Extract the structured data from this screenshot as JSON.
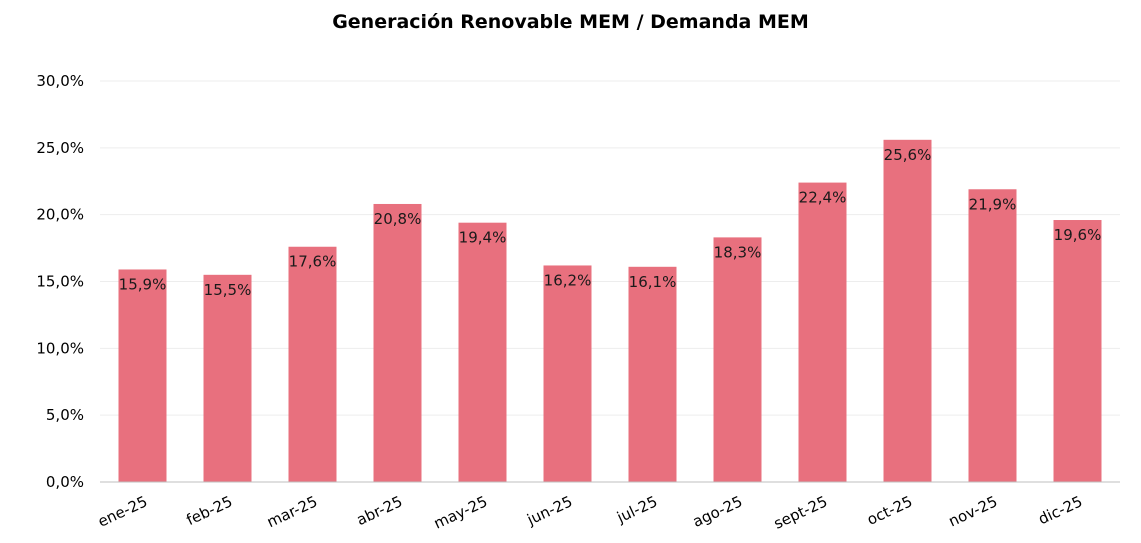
{
  "chart_data": {
    "type": "bar",
    "title": "Generación Renovable MEM / Demanda MEM",
    "xlabel": "",
    "ylabel": "",
    "categories": [
      "ene-25",
      "feb-25",
      "mar-25",
      "abr-25",
      "may-25",
      "jun-25",
      "jul-25",
      "ago-25",
      "sept-25",
      "oct-25",
      "nov-25",
      "dic-25"
    ],
    "values": [
      15.9,
      15.5,
      17.6,
      20.8,
      19.4,
      16.2,
      16.1,
      18.3,
      22.4,
      25.6,
      21.9,
      19.6
    ],
    "data_labels": [
      "15,9%",
      "15,5%",
      "17,6%",
      "20,8%",
      "19,4%",
      "16,2%",
      "16,1%",
      "18,3%",
      "22,4%",
      "25,6%",
      "21,9%",
      "19,6%"
    ],
    "ylim": [
      0,
      30
    ],
    "yticks": [
      0,
      5,
      10,
      15,
      20,
      25,
      30
    ],
    "ytick_labels": [
      "0,0%",
      "5,0%",
      "10,0%",
      "15,0%",
      "20,0%",
      "25,0%",
      "30,0%"
    ],
    "grid": true,
    "legend": "none",
    "bar_color": "#e8707e",
    "grid_color": "#ededed",
    "axis_color": "#bfbfbf"
  }
}
